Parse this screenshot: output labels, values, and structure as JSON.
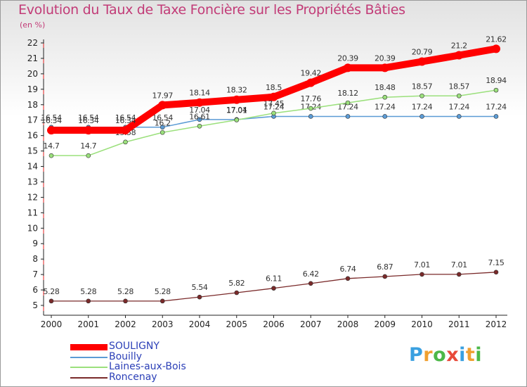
{
  "title": "Evolution du Taux de Taxe Foncière sur les Propriétés Bâties",
  "subtitle": "(en %)",
  "logo": "Proxiti",
  "chart_data": {
    "type": "line",
    "title": "Evolution du Taux de Taxe Foncière sur les Propriétés Bâties",
    "ylabel": "(en %)",
    "xlabel": "",
    "x": [
      "2000",
      "2001",
      "2002",
      "2003",
      "2004",
      "2005",
      "2006",
      "2007",
      "2008",
      "2009",
      "2010",
      "2011",
      "2012"
    ],
    "ylim": [
      5,
      22
    ],
    "yticks": [
      "5",
      "6",
      "7",
      "8",
      "9",
      "10",
      "11",
      "12",
      "13",
      "14",
      "15",
      "16",
      "17",
      "18",
      "19",
      "20",
      "21",
      "22"
    ],
    "grid": false,
    "legend_position": "bottom-left",
    "series": [
      {
        "name": "Bouilly",
        "color": "#5b9bd5",
        "values": [
          16.54,
          16.54,
          16.54,
          16.54,
          17.04,
          17.04,
          17.24,
          17.24,
          17.24,
          17.24,
          17.24,
          17.24,
          17.24
        ],
        "labels": [
          "16.54",
          "16.54",
          "16.54",
          "16.54",
          "17.04",
          "17.04",
          "17.24",
          "17.24",
          "17.24",
          "17.24",
          "17.24",
          "17.24",
          "17.24"
        ]
      },
      {
        "name": "Laines-aux-Bois",
        "color": "#9be07c",
        "values": [
          14.7,
          14.7,
          15.58,
          16.2,
          16.61,
          17.01,
          17.45,
          17.76,
          18.12,
          18.48,
          18.57,
          18.57,
          18.94
        ],
        "labels": [
          "14.7",
          "14.7",
          "15.58",
          "16.2",
          "16.61",
          "17.01",
          "17.45",
          "17.76",
          "18.12",
          "18.48",
          "18.57",
          "18.57",
          "18.94"
        ]
      },
      {
        "name": "Roncenay",
        "color": "#7a2a2a",
        "values": [
          5.28,
          5.28,
          5.28,
          5.28,
          5.54,
          5.82,
          6.11,
          6.42,
          6.74,
          6.87,
          7.01,
          7.01,
          7.15
        ],
        "labels": [
          "5.28",
          "5.28",
          "5.28",
          "5.28",
          "5.54",
          "5.82",
          "6.11",
          "6.42",
          "6.74",
          "6.87",
          "7.01",
          "7.01",
          "7.15"
        ]
      },
      {
        "name": "SOULIGNY",
        "color": "#ff0000",
        "values": [
          16.34,
          16.34,
          16.34,
          17.97,
          18.14,
          18.32,
          18.5,
          19.42,
          20.39,
          20.39,
          20.79,
          21.2,
          21.62
        ],
        "labels": [
          "16.34",
          "16.34",
          "16.34",
          "17.97",
          "18.14",
          "18.32",
          "18.5",
          "19.42",
          "20.39",
          "20.39",
          "20.79",
          "21.2",
          "21.62"
        ]
      }
    ],
    "legend": [
      {
        "name": "SOULIGNY",
        "color": "#ff0000"
      },
      {
        "name": "Bouilly",
        "color": "#5b9bd5"
      },
      {
        "name": "Laines-aux-Bois",
        "color": "#9be07c"
      },
      {
        "name": "Roncenay",
        "color": "#7a2a2a"
      }
    ]
  }
}
